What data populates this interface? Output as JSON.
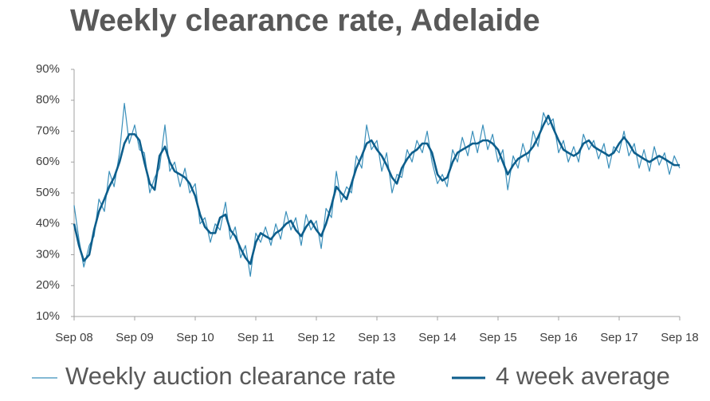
{
  "chart_data": {
    "type": "line",
    "title": "Weekly clearance rate, Adelaide",
    "x": [
      2008.67,
      2008.75,
      2008.83,
      2008.92,
      2009.0,
      2009.08,
      2009.17,
      2009.25,
      2009.33,
      2009.42,
      2009.5,
      2009.58,
      2009.67,
      2009.75,
      2009.83,
      2009.92,
      2010.0,
      2010.08,
      2010.17,
      2010.25,
      2010.33,
      2010.42,
      2010.5,
      2010.58,
      2010.67,
      2010.75,
      2010.83,
      2010.92,
      2011.0,
      2011.08,
      2011.17,
      2011.25,
      2011.33,
      2011.42,
      2011.5,
      2011.58,
      2011.67,
      2011.75,
      2011.83,
      2011.92,
      2012.0,
      2012.08,
      2012.17,
      2012.25,
      2012.33,
      2012.42,
      2012.5,
      2012.58,
      2012.67,
      2012.75,
      2012.83,
      2012.92,
      2013.0,
      2013.08,
      2013.17,
      2013.25,
      2013.33,
      2013.42,
      2013.5,
      2013.58,
      2013.67,
      2013.75,
      2013.83,
      2013.92,
      2014.0,
      2014.08,
      2014.17,
      2014.25,
      2014.33,
      2014.42,
      2014.5,
      2014.58,
      2014.67,
      2014.75,
      2014.83,
      2014.92,
      2015.0,
      2015.08,
      2015.17,
      2015.25,
      2015.33,
      2015.42,
      2015.5,
      2015.58,
      2015.67,
      2015.75,
      2015.83,
      2015.92,
      2016.0,
      2016.08,
      2016.17,
      2016.25,
      2016.33,
      2016.42,
      2016.5,
      2016.58,
      2016.67,
      2016.75,
      2016.83,
      2016.92,
      2017.0,
      2017.08,
      2017.17,
      2017.25,
      2017.33,
      2017.42,
      2017.5,
      2017.58,
      2017.67,
      2017.75,
      2017.83,
      2017.92,
      2018.0,
      2018.08,
      2018.17,
      2018.25,
      2018.33,
      2018.42,
      2018.5,
      2018.58,
      2018.67
    ],
    "series": [
      {
        "name": "Weekly auction clearance rate",
        "color": "#3a8fba",
        "width": 1.2,
        "values": [
          46,
          35,
          26,
          33,
          36,
          48,
          44,
          57,
          52,
          63,
          79,
          66,
          72,
          64,
          63,
          50,
          55,
          58,
          72,
          57,
          60,
          52,
          58,
          50,
          53,
          40,
          42,
          34,
          40,
          38,
          47,
          35,
          39,
          29,
          33,
          23,
          37,
          34,
          39,
          33,
          40,
          35,
          44,
          38,
          42,
          33,
          43,
          38,
          41,
          32,
          45,
          42,
          57,
          47,
          52,
          50,
          62,
          58,
          72,
          64,
          67,
          57,
          63,
          50,
          56,
          55,
          64,
          60,
          67,
          63,
          70,
          60,
          53,
          56,
          52,
          64,
          60,
          68,
          62,
          70,
          63,
          72,
          64,
          69,
          60,
          64,
          51,
          62,
          58,
          66,
          60,
          70,
          65,
          76,
          72,
          74,
          63,
          67,
          60,
          65,
          60,
          69,
          64,
          67,
          61,
          66,
          58,
          65,
          63,
          70,
          62,
          66,
          58,
          64,
          57,
          65,
          59,
          63,
          56,
          62,
          58
        ]
      },
      {
        "name": "4 week average",
        "color": "#0d5e8c",
        "width": 2.6,
        "values": [
          40,
          33,
          28,
          30,
          38,
          44,
          48,
          52,
          55,
          60,
          66,
          69,
          69,
          67,
          60,
          53,
          51,
          62,
          65,
          60,
          57,
          56,
          55,
          53,
          49,
          43,
          39,
          37,
          37,
          42,
          43,
          38,
          36,
          32,
          29,
          27,
          34,
          37,
          36,
          35,
          37,
          38,
          40,
          41,
          38,
          36,
          39,
          41,
          38,
          36,
          40,
          46,
          52,
          50,
          48,
          53,
          58,
          62,
          66,
          67,
          64,
          62,
          59,
          55,
          53,
          58,
          61,
          63,
          64,
          66,
          66,
          63,
          56,
          54,
          55,
          60,
          63,
          64,
          65,
          66,
          66,
          67,
          67,
          66,
          64,
          60,
          56,
          59,
          61,
          62,
          63,
          65,
          68,
          72,
          75,
          71,
          67,
          64,
          63,
          62,
          63,
          66,
          67,
          65,
          64,
          63,
          62,
          63,
          66,
          68,
          66,
          63,
          62,
          61,
          60,
          61,
          62,
          61,
          60,
          59,
          59
        ]
      }
    ],
    "xlim": [
      2008.67,
      2018.67
    ],
    "xticks": [
      {
        "value": 2008.67,
        "label": "Sep 08"
      },
      {
        "value": 2009.67,
        "label": "Sep 09"
      },
      {
        "value": 2010.67,
        "label": "Sep 10"
      },
      {
        "value": 2011.67,
        "label": "Sep 11"
      },
      {
        "value": 2012.67,
        "label": "Sep 12"
      },
      {
        "value": 2013.67,
        "label": "Sep 13"
      },
      {
        "value": 2014.67,
        "label": "Sep 14"
      },
      {
        "value": 2015.67,
        "label": "Sep 15"
      },
      {
        "value": 2016.67,
        "label": "Sep 16"
      },
      {
        "value": 2017.67,
        "label": "Sep 17"
      },
      {
        "value": 2018.67,
        "label": "Sep 18"
      }
    ],
    "ylim": [
      10,
      90
    ],
    "yticks": [
      {
        "value": 10,
        "label": "10%"
      },
      {
        "value": 20,
        "label": "20%"
      },
      {
        "value": 30,
        "label": "30%"
      },
      {
        "value": 40,
        "label": "40%"
      },
      {
        "value": 50,
        "label": "50%"
      },
      {
        "value": 60,
        "label": "60%"
      },
      {
        "value": 70,
        "label": "70%"
      },
      {
        "value": 80,
        "label": "80%"
      },
      {
        "value": 90,
        "label": "90%"
      }
    ],
    "grid": false,
    "legend": "bottom"
  }
}
